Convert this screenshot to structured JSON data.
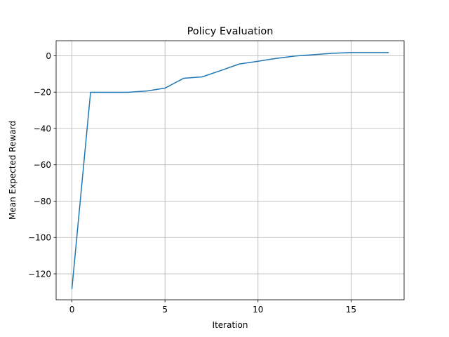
{
  "chart_data": {
    "type": "line",
    "title": "Policy Evaluation",
    "xlabel": "Iteration",
    "ylabel": "Mean Expected Reward",
    "xlim": [
      -0.85,
      17.85
    ],
    "ylim": [
      -134.3,
      8.3
    ],
    "xticks": [
      0,
      5,
      10,
      15
    ],
    "xtick_labels": [
      "0",
      "5",
      "10",
      "15"
    ],
    "yticks": [
      0,
      -20,
      -40,
      -60,
      -80,
      -100,
      -120
    ],
    "ytick_labels": [
      "0",
      "−20",
      "−40",
      "−60",
      "−80",
      "−100",
      "−120"
    ],
    "grid": true,
    "legend": "none",
    "series": [
      {
        "color": "#1f77b4",
        "x": [
          0,
          1,
          2,
          3,
          4,
          5,
          6,
          7,
          8,
          9,
          10,
          11,
          12,
          13,
          14,
          15,
          16,
          17
        ],
        "y": [
          -128.1,
          -20.1,
          -20.1,
          -20.1,
          -19.4,
          -17.8,
          -12.4,
          -11.6,
          -8.1,
          -4.5,
          -3.0,
          -1.4,
          -0.1,
          0.6,
          1.4,
          1.8,
          1.8,
          1.8
        ]
      }
    ]
  }
}
